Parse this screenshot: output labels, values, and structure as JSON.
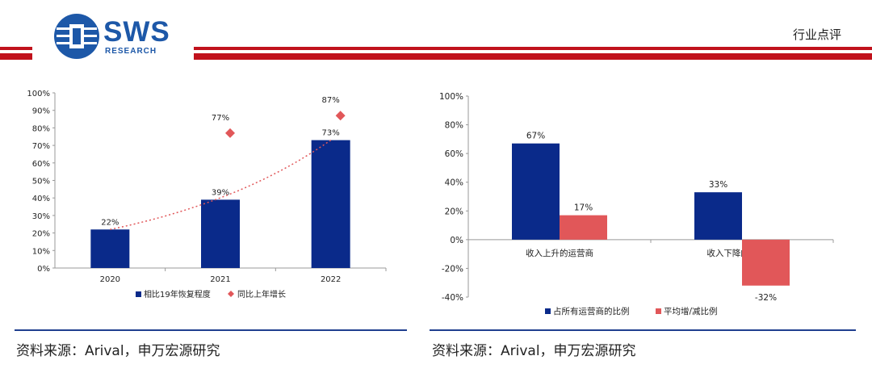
{
  "header": {
    "logo_text": "SWS",
    "logo_sub": "RESEARCH",
    "report_type": "行业点评",
    "brand_color": "#1d58a8",
    "accent_red": "#c1121c"
  },
  "chart_data": [
    {
      "type": "bar",
      "categories": [
        "2020",
        "2021",
        "2022"
      ],
      "series": [
        {
          "name": "相比19年恢复程度",
          "kind": "bar",
          "color": "#0a2a8a",
          "values": [
            22,
            39,
            73
          ],
          "labels": [
            "22%",
            "39%",
            "73%"
          ]
        },
        {
          "name": "同比上年增长",
          "kind": "marker",
          "color": "#e15759",
          "values": [
            null,
            77,
            87
          ],
          "labels": [
            "",
            "77%",
            "87%"
          ]
        }
      ],
      "trendline": {
        "kind": "dotted",
        "color": "#e15759"
      },
      "ylim": [
        0,
        100
      ],
      "yticks": [
        "0%",
        "10%",
        "20%",
        "30%",
        "40%",
        "50%",
        "60%",
        "70%",
        "80%",
        "90%",
        "100%"
      ],
      "legend_position": "bottom"
    },
    {
      "type": "bar",
      "categories": [
        "收入上升的运营商",
        "收入下降的 运营商"
      ],
      "series": [
        {
          "name": "占所有运营商的比例",
          "color": "#0a2a8a",
          "values": [
            67,
            33
          ],
          "labels": [
            "67%",
            "33%"
          ]
        },
        {
          "name": "平均增/减比例",
          "color": "#e15759",
          "values": [
            17,
            -32
          ],
          "labels": [
            "17%",
            "-32%"
          ]
        }
      ],
      "ylim": [
        -40,
        100
      ],
      "yticks": [
        "-40%",
        "-20%",
        "0%",
        "20%",
        "40%",
        "60%",
        "80%",
        "100%"
      ],
      "legend_position": "bottom"
    }
  ],
  "sources": [
    "资料来源：Arival，申万宏源研究",
    "资料来源：Arival，申万宏源研究"
  ]
}
